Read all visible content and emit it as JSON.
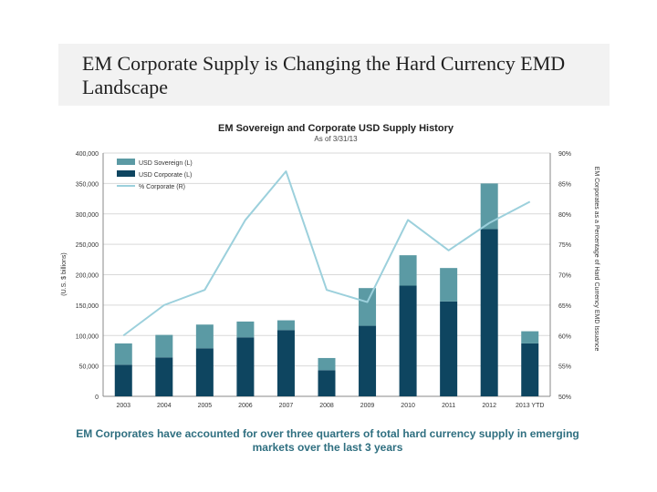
{
  "slide": {
    "title": "EM Corporate Supply is Changing the Hard Currency EMD Landscape",
    "footnote": "EM Corporates have accounted for over three quarters of total hard currency supply in emerging markets over the last 3 years"
  },
  "colors": {
    "sovereign": "#5b9aa4",
    "corporate": "#0e4560",
    "corporate_pct_line": "#9cd0dc",
    "title_band": "#f2f2f2"
  },
  "chart_data": {
    "type": "bar",
    "title": "EM Sovereign and Corporate USD Supply History",
    "subtitle": "As of 3/31/13",
    "categories": [
      "2003",
      "2004",
      "2005",
      "2006",
      "2007",
      "2008",
      "2009",
      "2010",
      "2011",
      "2012",
      "2013 YTD"
    ],
    "stacked": true,
    "series": [
      {
        "name": "USD Sovereign (L)",
        "axis": "left",
        "values": [
          35000,
          37000,
          39000,
          26000,
          16000,
          20000,
          62000,
          50000,
          55000,
          75000,
          20000
        ]
      },
      {
        "name": "USD Corporate (L)",
        "axis": "left",
        "values": [
          52000,
          64000,
          79000,
          97000,
          109000,
          43000,
          116000,
          182000,
          156000,
          275000,
          87000
        ]
      },
      {
        "name": "% Corporate (R)",
        "axis": "right",
        "type": "line",
        "values": [
          60,
          65,
          67.5,
          79,
          87,
          67.5,
          65.5,
          79,
          74,
          78.5,
          82
        ]
      }
    ],
    "ylabel": "(U.S. $ billions)",
    "y2label": "EM Corporates as a Percentage of Hard Currency EMD Issuance",
    "ylim": [
      0,
      400000
    ],
    "y2lim": [
      50,
      90
    ],
    "yticks": [
      "0",
      "50,000",
      "100,000",
      "150,000",
      "200,000",
      "250,000",
      "300,000",
      "350,000",
      "400,000"
    ],
    "y2ticks": [
      "50%",
      "55%",
      "60%",
      "65%",
      "70%",
      "75%",
      "80%",
      "85%",
      "90%"
    ],
    "grid": true,
    "legend_position": "top-left"
  }
}
